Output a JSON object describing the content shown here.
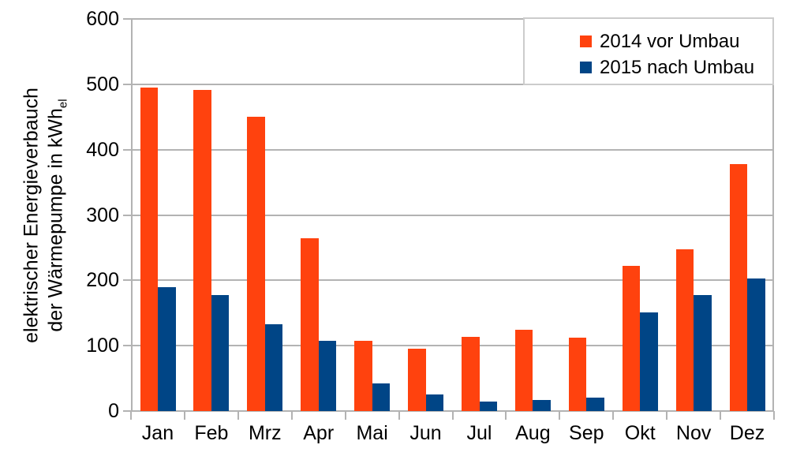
{
  "page": {
    "background": "#ffffff",
    "text_color": "#000000",
    "gridline_color": "#b3b3b3",
    "axis_color": "#b3b3b3",
    "legend_border_color": "#cccccc"
  },
  "chart_data": {
    "type": "bar",
    "title": "",
    "xlabel": "",
    "ylabel_line1": "elektrischer Energieverbauch",
    "ylabel_line2": "der Wärmepumpe in kWh",
    "ylabel_subscript": "el",
    "categories": [
      "Jan",
      "Feb",
      "Mrz",
      "Apr",
      "Mai",
      "Jun",
      "Jul",
      "Aug",
      "Sep",
      "Okt",
      "Nov",
      "Dez"
    ],
    "series": [
      {
        "name": "2014 vor Umbau",
        "color": "#ff420e",
        "values": [
          495,
          491,
          450,
          265,
          107,
          96,
          113,
          124,
          112,
          222,
          248,
          378
        ]
      },
      {
        "name": "2015 nach Umbau",
        "color": "#004586",
        "values": [
          190,
          178,
          133,
          108,
          42,
          25,
          15,
          17,
          20,
          151,
          178,
          203
        ]
      }
    ],
    "ylim": [
      0,
      600
    ],
    "yticks": [
      0,
      100,
      200,
      300,
      400,
      500,
      600
    ],
    "grid": "horizontal",
    "legend_position": "top-right"
  }
}
